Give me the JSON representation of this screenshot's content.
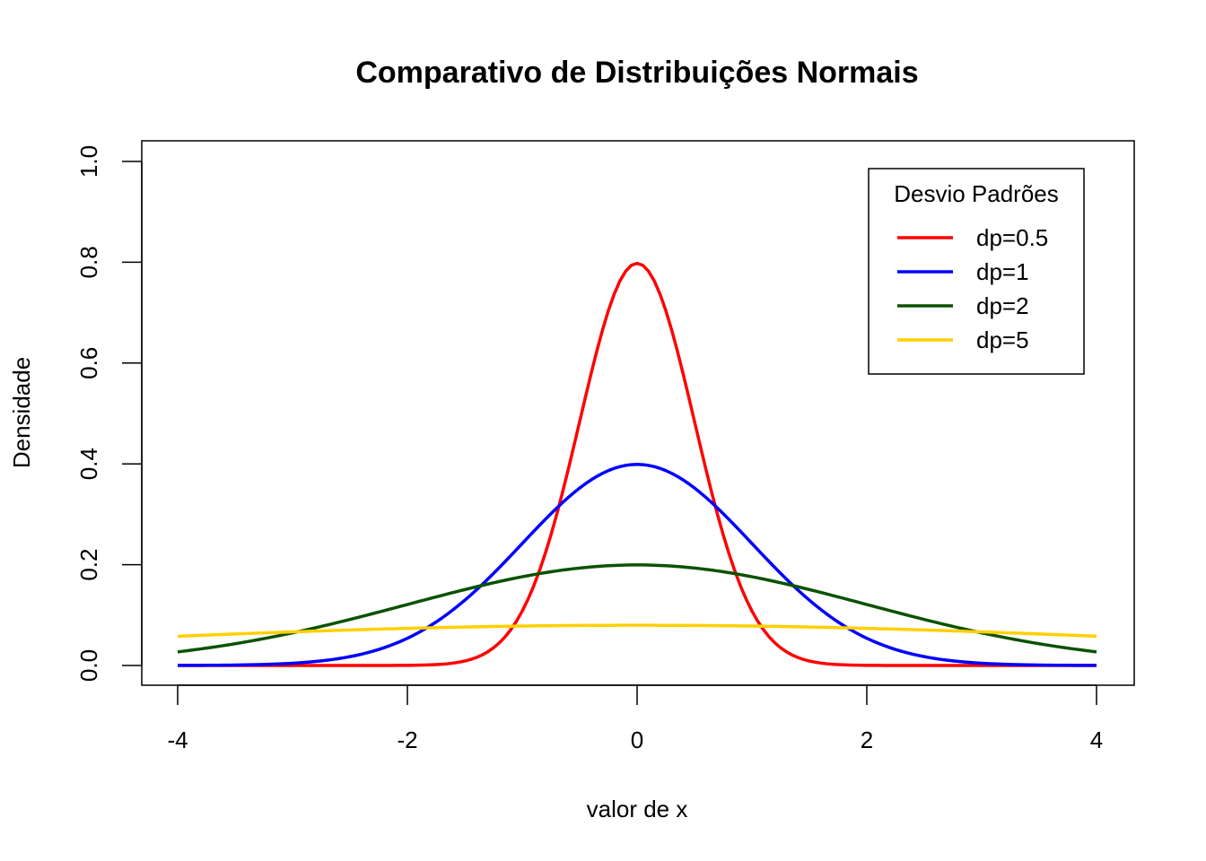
{
  "chart_data": {
    "type": "line",
    "title": "Comparativo de Distribuições Normais",
    "xlabel": "valor de x",
    "ylabel": "Densidade",
    "xlim": [
      -4,
      4
    ],
    "ylim": [
      0,
      1
    ],
    "x_ticks": [
      -4,
      -2,
      0,
      2,
      4
    ],
    "x_tick_labels": [
      "-4",
      "-2",
      "0",
      "2",
      "4"
    ],
    "y_ticks": [
      0,
      0.2,
      0.4,
      0.6,
      0.8,
      1
    ],
    "y_tick_labels": [
      "0.0",
      "0.2",
      "0.4",
      "0.6",
      "0.8",
      "1.0"
    ],
    "grid": false,
    "legend": {
      "title": "Desvio Padrões",
      "position": "top-right",
      "entries": [
        "dp=0.5",
        "dp=1",
        "dp=2",
        "dp=5"
      ]
    },
    "x": [
      -4,
      -3.5,
      -3,
      -2.5,
      -2,
      -1.75,
      -1.5,
      -1.25,
      -1,
      -0.75,
      -0.5,
      -0.25,
      0,
      0.25,
      0.5,
      0.75,
      1,
      1.25,
      1.5,
      1.75,
      2,
      2.5,
      3,
      3.5,
      4
    ],
    "series": [
      {
        "name": "dp=0.5",
        "sd": 0.5,
        "color": "#ff0000",
        "values": [
          0.0,
          0.0,
          0.0,
          0.0,
          0.0003,
          0.0018,
          0.0089,
          0.035,
          0.108,
          0.259,
          0.4839,
          0.7041,
          0.7979,
          0.7041,
          0.4839,
          0.259,
          0.108,
          0.035,
          0.0089,
          0.0018,
          0.0003,
          0.0,
          0.0,
          0.0,
          0.0
        ]
      },
      {
        "name": "dp=1",
        "sd": 1,
        "color": "#0000ff",
        "values": [
          0.0001,
          0.0009,
          0.0044,
          0.0175,
          0.054,
          0.0863,
          0.1295,
          0.1826,
          0.242,
          0.3011,
          0.3521,
          0.3867,
          0.3989,
          0.3867,
          0.3521,
          0.3011,
          0.242,
          0.1826,
          0.1295,
          0.0863,
          0.054,
          0.0175,
          0.0044,
          0.0009,
          0.0001
        ]
      },
      {
        "name": "dp=2",
        "sd": 2,
        "color": "#0b5200",
        "values": [
          0.027,
          0.0431,
          0.0648,
          0.0913,
          0.121,
          0.1363,
          0.1506,
          0.1633,
          0.176,
          0.1859,
          0.1933,
          0.1979,
          0.1995,
          0.1979,
          0.1933,
          0.1859,
          0.176,
          0.1633,
          0.1506,
          0.1363,
          0.121,
          0.0913,
          0.0648,
          0.0431,
          0.027
        ]
      },
      {
        "name": "dp=5",
        "sd": 5,
        "color": "#ffd000",
        "values": [
          0.0579,
          0.0624,
          0.0666,
          0.0704,
          0.0737,
          0.0752,
          0.0763,
          0.0773,
          0.0782,
          0.0788,
          0.0794,
          0.0797,
          0.0798,
          0.0797,
          0.0794,
          0.0788,
          0.0782,
          0.0773,
          0.0763,
          0.0752,
          0.0737,
          0.0704,
          0.0666,
          0.0624,
          0.0579
        ]
      }
    ]
  }
}
